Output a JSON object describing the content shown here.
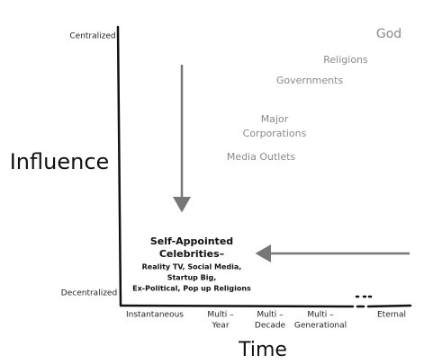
{
  "axes": {
    "y_label": "Influence",
    "x_label": "Time",
    "y_top": "Centralized",
    "y_bottom": "Decentralized",
    "x_ticks": [
      [
        "Instantaneous"
      ],
      [
        "Multi –",
        "Year"
      ],
      [
        "Multi –",
        "Decade"
      ],
      [
        "Multi –",
        "Generational"
      ],
      [
        "Eternal"
      ]
    ]
  },
  "items": [
    [
      "God"
    ],
    [
      "Religions"
    ],
    [
      "Governments"
    ],
    [
      "Major",
      "Corporations"
    ],
    [
      "Media Outlets"
    ]
  ],
  "highlight": {
    "title": [
      "Self-Appointed",
      "Celebrities–"
    ],
    "details": [
      "Reality TV, Social Media,",
      "Startup Big,",
      "Ex-Political, Pop up Religions"
    ]
  }
}
